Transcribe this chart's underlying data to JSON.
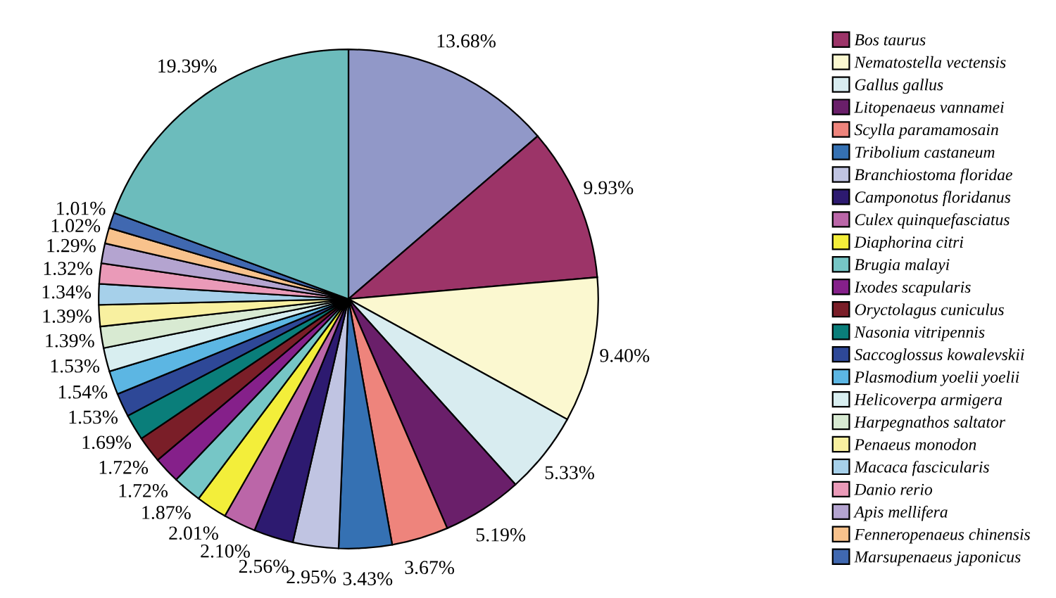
{
  "chart_data": {
    "type": "pie",
    "categories": [
      null,
      "Bos taurus",
      "Nematostella vectensis",
      "Gallus gallus",
      "Litopenaeus vannamei",
      "Scylla paramamosain",
      "Tribolium castaneum",
      "Branchiostoma floridae",
      "Camponotus floridanus",
      "Culex quinquefasciatus",
      "Diaphorina citri",
      "Brugia malayi",
      "Ixodes scapularis",
      "Oryctolagus cuniculus",
      "Nasonia vitripennis",
      "Saccoglossus kowalevskii",
      "Plasmodium yoelii yoelii",
      "Helicoverpa armigera",
      "Harpegnathos saltator",
      "Penaeus monodon",
      "Macaca fascicularis",
      "Danio rerio",
      "Apis mellifera",
      "Fenneropenaeus chinensis",
      "Marsupenaeus japonicus",
      null
    ],
    "values": [
      13.68,
      9.93,
      9.4,
      5.33,
      5.19,
      3.67,
      3.43,
      2.95,
      2.56,
      2.1,
      2.01,
      1.87,
      1.72,
      1.72,
      1.69,
      1.53,
      1.54,
      1.53,
      1.39,
      1.39,
      1.34,
      1.32,
      1.29,
      1.02,
      1.01,
      19.39
    ],
    "colors": [
      "#9198c8",
      "#9c3468",
      "#fbf8d0",
      "#d8ecf0",
      "#6a1f6a",
      "#ee847c",
      "#3571b3",
      "#c0c4e2",
      "#2d1a70",
      "#bb66a8",
      "#f3ee3a",
      "#76c6c6",
      "#85208a",
      "#7a1e28",
      "#0a7e7a",
      "#2e4897",
      "#5cb6e3",
      "#d8eef0",
      "#d8ead2",
      "#f8f0a0",
      "#a6d0ea",
      "#ea9ab8",
      "#b4a4d0",
      "#f8c28c",
      "#4068b0",
      "#6cbcbc"
    ],
    "value_labels": [
      "13.68%",
      "9.93%",
      "9.40%",
      "5.33%",
      "5.19%",
      "3.67%",
      "3.43%",
      "2.95%",
      "2.56%",
      "2.10%",
      "2.01%",
      "1.87%",
      "1.72%",
      "1.72%",
      "1.69%",
      "1.53%",
      "1.54%",
      "1.53%",
      "1.39%",
      "1.39%",
      "1.34%",
      "1.32%",
      "1.29%",
      "1.02%",
      "1.01%",
      "19.39%"
    ],
    "legend": "right"
  }
}
